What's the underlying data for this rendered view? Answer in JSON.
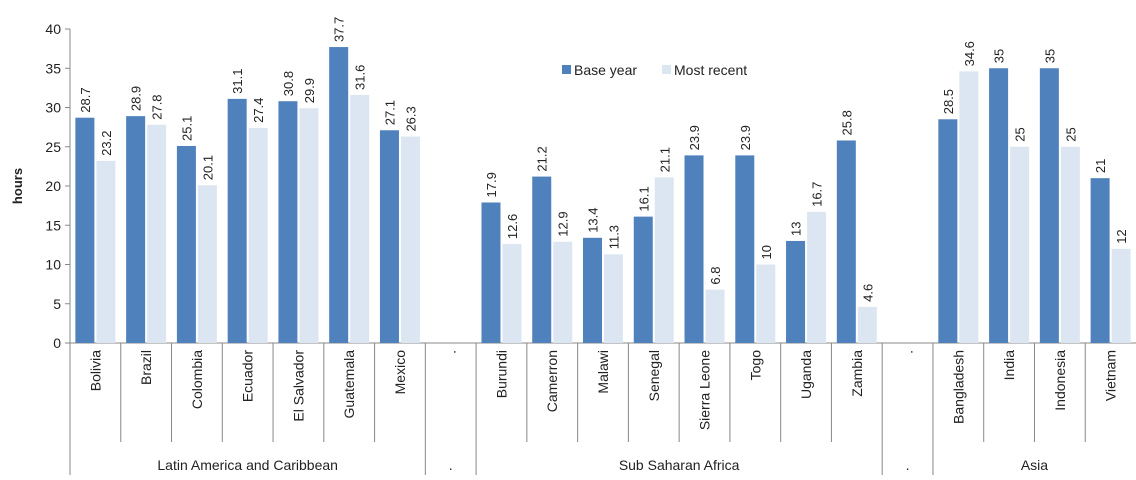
{
  "chart_data": {
    "type": "bar",
    "ylabel": "hours",
    "ylim": [
      0,
      40
    ],
    "yticks": [
      0,
      5,
      10,
      15,
      20,
      25,
      30,
      35,
      40
    ],
    "grid": false,
    "legend_position": "top-center",
    "colors": {
      "base": "#4f81bd",
      "recent": "#dce6f2"
    },
    "series": [
      {
        "name": "Base year"
      },
      {
        "name": "Most recent"
      }
    ],
    "groups": [
      {
        "label": "Latin America and Caribbean",
        "categories": [
          {
            "label": "Bolivia",
            "values": [
              28.7,
              23.2
            ]
          },
          {
            "label": "Brazil",
            "values": [
              28.9,
              27.8
            ]
          },
          {
            "label": "Colombia",
            "values": [
              25.1,
              20.1
            ]
          },
          {
            "label": "Ecuador",
            "values": [
              31.1,
              27.4
            ]
          },
          {
            "label": "El Salvador",
            "values": [
              30.8,
              29.9
            ]
          },
          {
            "label": "Guatemala",
            "values": [
              37.7,
              31.6
            ]
          },
          {
            "label": "Mexico",
            "values": [
              27.1,
              26.3
            ]
          }
        ]
      },
      {
        "label": ".",
        "categories": [
          {
            "label": ".",
            "values": [
              null,
              null
            ]
          }
        ]
      },
      {
        "label": "Sub Saharan Africa",
        "categories": [
          {
            "label": "Burundi",
            "values": [
              17.9,
              12.6
            ]
          },
          {
            "label": "Camerron",
            "values": [
              21.2,
              12.9
            ]
          },
          {
            "label": "Malawi",
            "values": [
              13.4,
              11.3
            ]
          },
          {
            "label": "Senegal",
            "values": [
              16.1,
              21.1
            ]
          },
          {
            "label": "Sierra Leone",
            "values": [
              23.9,
              6.8
            ]
          },
          {
            "label": "Togo",
            "values": [
              23.9,
              10
            ]
          },
          {
            "label": "Uganda",
            "values": [
              13,
              16.7
            ]
          },
          {
            "label": "Zambia",
            "values": [
              25.8,
              4.6
            ]
          }
        ]
      },
      {
        "label": ".",
        "categories": [
          {
            "label": ".",
            "values": [
              null,
              null
            ]
          }
        ]
      },
      {
        "label": "Asia",
        "categories": [
          {
            "label": "Bangladesh",
            "values": [
              28.5,
              34.6
            ]
          },
          {
            "label": "India",
            "values": [
              35,
              25
            ]
          },
          {
            "label": "Indonesia",
            "values": [
              35,
              25
            ]
          },
          {
            "label": "Vietnam",
            "values": [
              21,
              12
            ]
          }
        ]
      }
    ]
  }
}
